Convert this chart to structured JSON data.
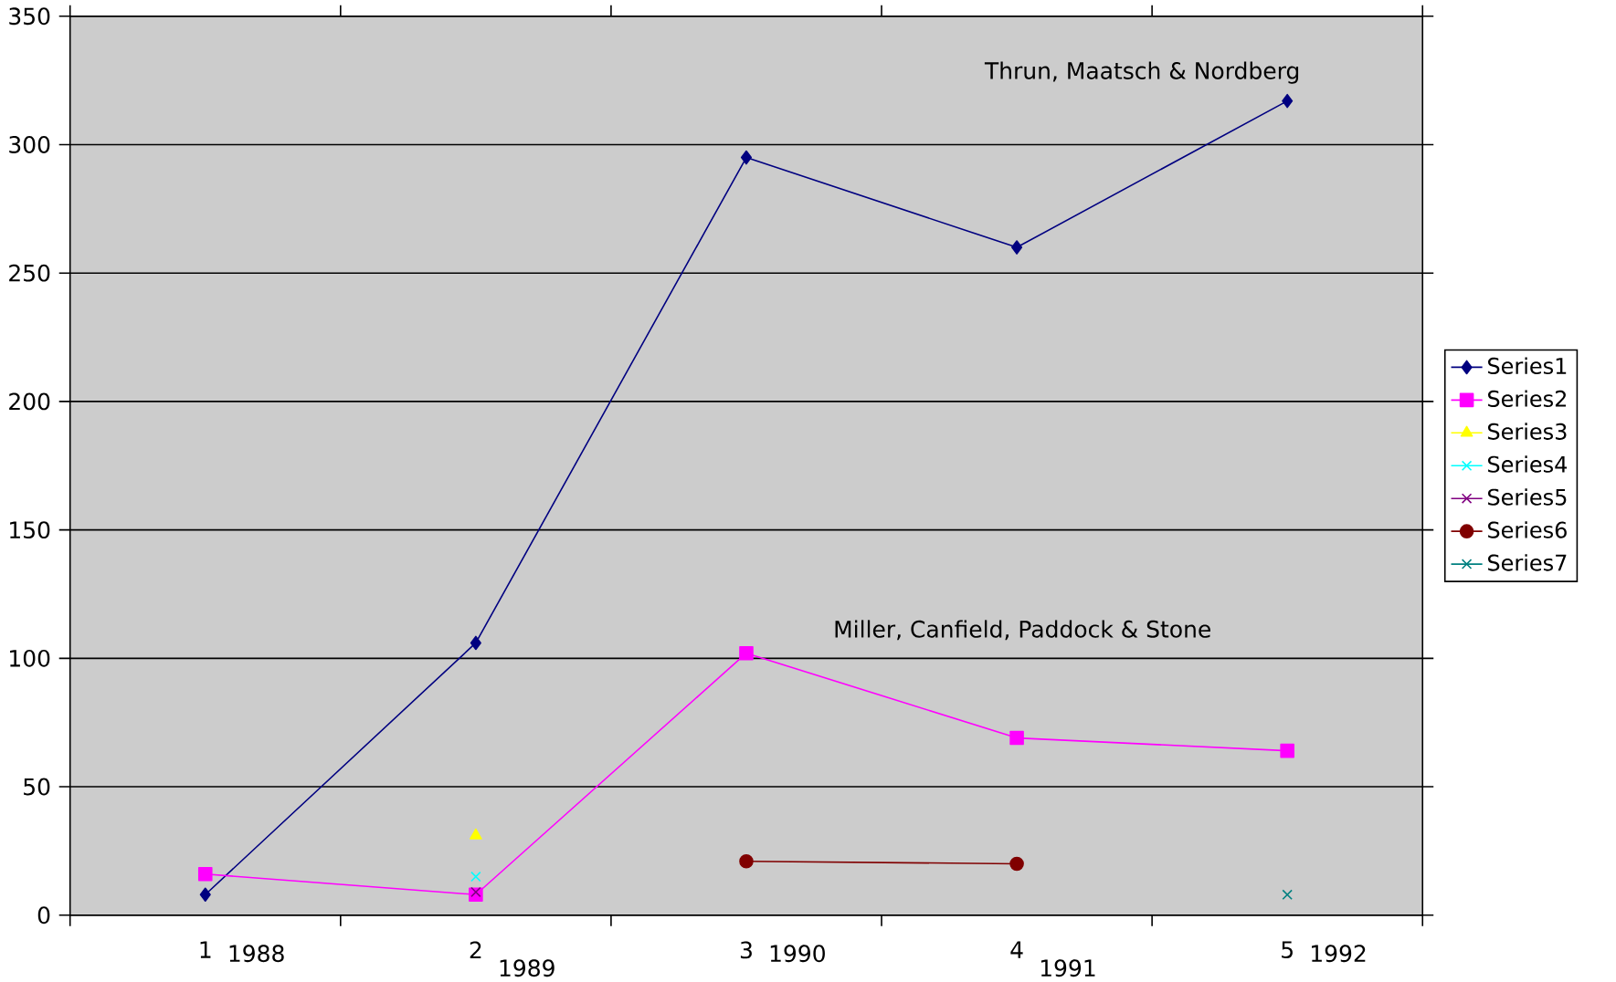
{
  "chart_data": {
    "type": "line",
    "categories": [
      "1",
      "2",
      "3",
      "4",
      "5"
    ],
    "series": [
      {
        "name": "Series1",
        "color": "#000080",
        "marker": "diamond",
        "values": [
          8,
          106,
          295,
          260,
          317
        ]
      },
      {
        "name": "Series2",
        "color": "#ff00ff",
        "marker": "square",
        "values": [
          16,
          8,
          102,
          69,
          64
        ]
      },
      {
        "name": "Series3",
        "color": "#ffff00",
        "marker": "triangle",
        "values": [
          null,
          31,
          null,
          null,
          null
        ]
      },
      {
        "name": "Series4",
        "color": "#00ffff",
        "marker": "cross",
        "values": [
          null,
          15,
          null,
          null,
          null
        ]
      },
      {
        "name": "Series5",
        "color": "#800080",
        "marker": "cross",
        "values": [
          null,
          9,
          null,
          null,
          null
        ]
      },
      {
        "name": "Series6",
        "color": "#800000",
        "marker": "circle",
        "values": [
          null,
          null,
          21,
          20,
          null
        ]
      },
      {
        "name": "Series7",
        "color": "#008080",
        "marker": "cross",
        "values": [
          null,
          null,
          null,
          null,
          8
        ]
      }
    ],
    "ylim": [
      0,
      350
    ],
    "yticks": [
      0,
      50,
      100,
      150,
      200,
      250,
      300,
      350
    ],
    "grid": "y",
    "legend": "right",
    "annotations": [
      "1988",
      "1989",
      "1990",
      "1991",
      "1992",
      "Thrun, Maatsch & Nordberg",
      "Miller, Canfield, Paddock & Stone"
    ]
  }
}
